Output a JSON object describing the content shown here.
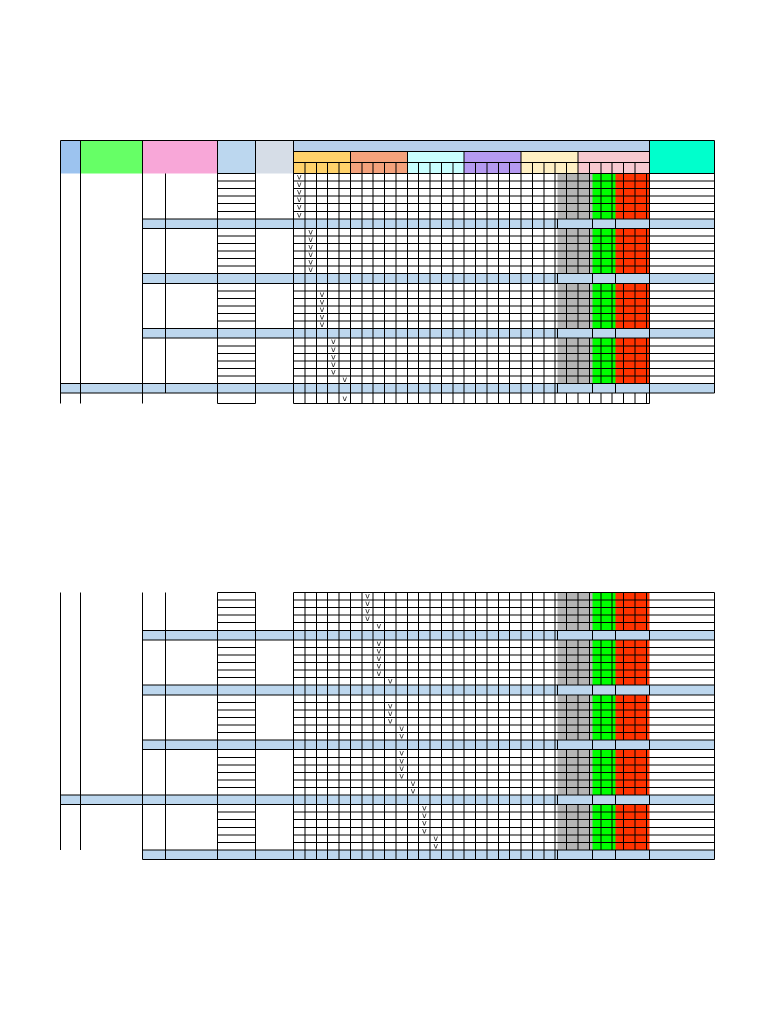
{
  "sheet_title": "",
  "colors": {
    "id_col": "#9cc3ef",
    "name_col": "#66ff66",
    "cat_col": "#f8a7d8",
    "col_d": "#bcd7ef",
    "col_e": "#d6dde7",
    "group_header": "#b8d0ea",
    "note_col": "#00ffcc",
    "sub1": "#ffd26b",
    "sub2": "#f4a27c",
    "sub3": "#c9ffff",
    "sub4": "#b59af1",
    "sub5": "#fff0c4",
    "sub6": "#f7c9cf",
    "band_gray": "#b4b4b4",
    "band_green": "#00ff00",
    "band_red": "#ff3300",
    "section_fill": "#bdd7ee",
    "grid": "#000000"
  },
  "mark_symbol": "v",
  "block1": {
    "groups": [
      {
        "rows": 6,
        "checks": [
          {
            "row": 0,
            "col": 0
          },
          {
            "row": 1,
            "col": 0
          },
          {
            "row": 2,
            "col": 0
          },
          {
            "row": 3,
            "col": 0
          },
          {
            "row": 4,
            "col": 0
          },
          {
            "row": 5,
            "col": 0
          }
        ]
      },
      {
        "rows": 6,
        "checks": [
          {
            "row": 0,
            "col": 1
          },
          {
            "row": 1,
            "col": 1
          },
          {
            "row": 2,
            "col": 1
          },
          {
            "row": 3,
            "col": 1
          },
          {
            "row": 4,
            "col": 1
          },
          {
            "row": 5,
            "col": 1
          }
        ]
      },
      {
        "rows": 6,
        "checks": [
          {
            "row": 1,
            "col": 2
          },
          {
            "row": 2,
            "col": 2
          },
          {
            "row": 3,
            "col": 2
          },
          {
            "row": 4,
            "col": 2
          },
          {
            "row": 5,
            "col": 2
          }
        ]
      },
      {
        "rows": 6,
        "checks": [
          {
            "row": 0,
            "col": 3
          },
          {
            "row": 1,
            "col": 3
          },
          {
            "row": 2,
            "col": 3
          },
          {
            "row": 3,
            "col": 3
          },
          {
            "row": 4,
            "col": 3
          },
          {
            "row": 5,
            "col": 4
          }
        ]
      }
    ],
    "trailing_checks": [
      {
        "row": 0,
        "col": 4
      }
    ]
  },
  "block2": {
    "groups": [
      {
        "rows": 5,
        "checks": [
          {
            "row": 0,
            "col": 6
          },
          {
            "row": 1,
            "col": 6
          },
          {
            "row": 2,
            "col": 6
          },
          {
            "row": 3,
            "col": 6
          },
          {
            "row": 4,
            "col": 7
          }
        ]
      },
      {
        "rows": 6,
        "checks": [
          {
            "row": 0,
            "col": 7
          },
          {
            "row": 1,
            "col": 7
          },
          {
            "row": 2,
            "col": 7
          },
          {
            "row": 3,
            "col": 7
          },
          {
            "row": 4,
            "col": 7
          },
          {
            "row": 5,
            "col": 8
          }
        ]
      },
      {
        "rows": 6,
        "checks": [
          {
            "row": 1,
            "col": 8
          },
          {
            "row": 2,
            "col": 8
          },
          {
            "row": 3,
            "col": 8
          },
          {
            "row": 4,
            "col": 9
          },
          {
            "row": 5,
            "col": 9
          }
        ]
      },
      {
        "rows": 6,
        "checks": [
          {
            "row": 0,
            "col": 9
          },
          {
            "row": 1,
            "col": 9
          },
          {
            "row": 2,
            "col": 9
          },
          {
            "row": 3,
            "col": 9
          },
          {
            "row": 4,
            "col": 10
          },
          {
            "row": 5,
            "col": 10
          }
        ]
      },
      {
        "rows": 6,
        "checks": [
          {
            "row": 0,
            "col": 11
          },
          {
            "row": 1,
            "col": 11
          },
          {
            "row": 2,
            "col": 11
          },
          {
            "row": 3,
            "col": 11
          },
          {
            "row": 4,
            "col": 12
          },
          {
            "row": 5,
            "col": 12
          }
        ]
      }
    ]
  }
}
